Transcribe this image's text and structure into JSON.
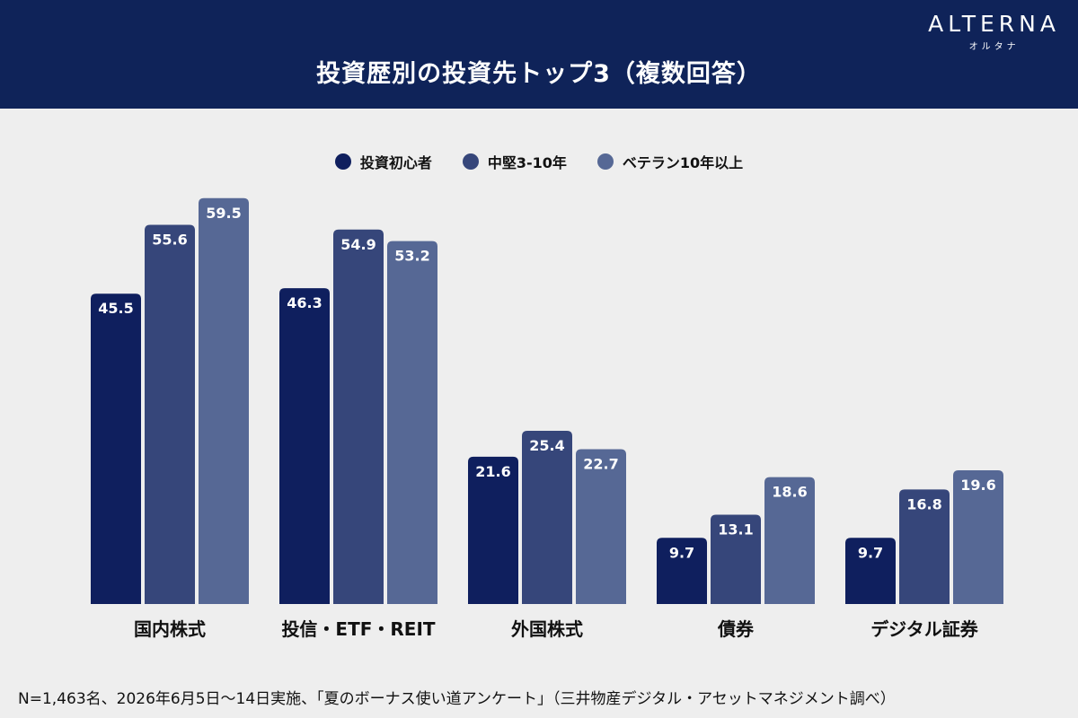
{
  "header": {
    "title": "投資歴別の投資先トップ3（複数回答）",
    "logo_main": "ALTERNA",
    "logo_sub": "オルタナ"
  },
  "colors": {
    "header_bg": "#0f2359",
    "series": [
      "#0f1f5e",
      "#36467a",
      "#566895"
    ]
  },
  "chart_data": {
    "type": "bar",
    "title": "投資歴別の投資先トップ3（複数回答）",
    "categories": [
      "国内株式",
      "投信・ETF・REIT",
      "外国株式",
      "債券",
      "デジタル証券"
    ],
    "series": [
      {
        "name": "投資初心者",
        "values": [
          45.5,
          46.3,
          21.6,
          9.7,
          9.7
        ]
      },
      {
        "name": "中堅3-10年",
        "values": [
          55.6,
          54.9,
          25.4,
          13.1,
          16.8
        ]
      },
      {
        "name": "ベテラン10年以上",
        "values": [
          59.5,
          53.2,
          22.7,
          18.6,
          19.6
        ]
      }
    ],
    "ylim": [
      0,
      60
    ],
    "legend": "top-center",
    "grid": false
  },
  "footnote": "N=1,463名、2026年6月5日～14日実施、「夏のボーナス使い道アンケート」（三井物産デジタル・アセットマネジメント調べ）"
}
